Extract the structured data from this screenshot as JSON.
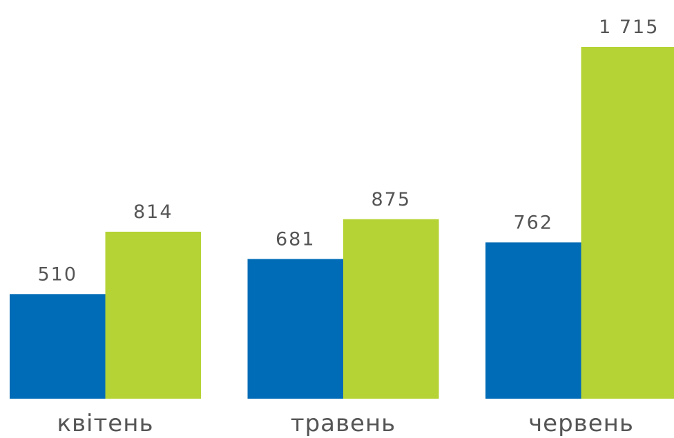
{
  "chart_data": {
    "type": "bar",
    "categories": [
      "квітень",
      "травень",
      "червень"
    ],
    "series": [
      {
        "color": "#006bb6",
        "values": [
          510,
          681,
          762
        ]
      },
      {
        "color": "#b5d334",
        "values": [
          814,
          875,
          1715
        ],
        "value_labels": [
          "814",
          "875",
          "1 715"
        ]
      }
    ]
  }
}
